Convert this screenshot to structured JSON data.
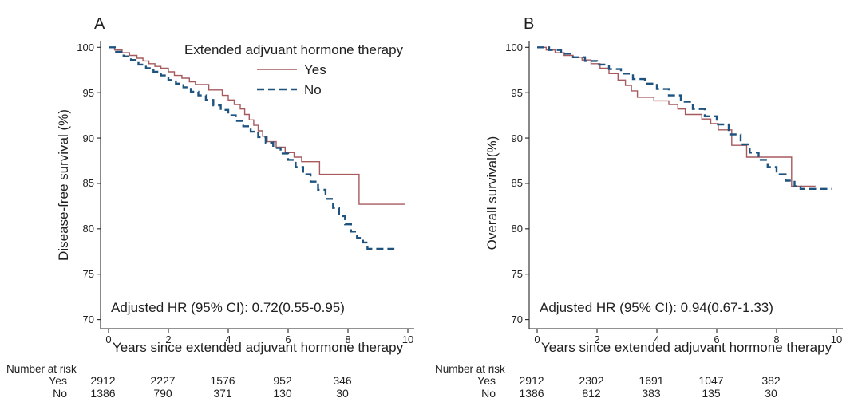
{
  "figure": {
    "background": "#ffffff",
    "text_color": "#1f1f1f",
    "axis_color": "#262626",
    "legend": {
      "title": "Extended adjvuant hormone therapy",
      "entries": [
        {
          "label": "Yes",
          "style": "solid",
          "color": "#a65a5e"
        },
        {
          "label": "No",
          "style": "dashed",
          "color": "#1f537f"
        }
      ]
    }
  },
  "chart_data": [
    {
      "type": "line",
      "subtype": "kaplan-meier-step",
      "panel_label": "A",
      "xlabel": "Years since extended adjuvant hormone therapy",
      "ylabel": "Disease-free survival (%)",
      "annotation": "Adjusted HR (95% CI): 0.72(0.55-0.95)",
      "xlim": [
        0,
        10
      ],
      "ylim": [
        70,
        100
      ],
      "x_ticks": [
        0,
        2,
        4,
        6,
        8,
        10
      ],
      "y_ticks": [
        100,
        95,
        90,
        85,
        80,
        75,
        70
      ],
      "grid": false,
      "legend_position": "top-right-inside",
      "series": [
        {
          "name": "Yes",
          "style": "solid",
          "color": "#a65a5e",
          "width": 1.4,
          "points": [
            [
              0,
              100
            ],
            [
              0.2,
              99.7
            ],
            [
              0.45,
              99.4
            ],
            [
              0.7,
              99.1
            ],
            [
              0.95,
              98.8
            ],
            [
              1.15,
              98.5
            ],
            [
              1.35,
              98.2
            ],
            [
              1.55,
              97.9
            ],
            [
              1.75,
              97.7
            ],
            [
              2.0,
              97.3
            ],
            [
              2.2,
              96.9
            ],
            [
              2.45,
              96.6
            ],
            [
              2.7,
              96.2
            ],
            [
              2.9,
              95.9
            ],
            [
              3.35,
              95.3
            ],
            [
              3.8,
              94.7
            ],
            [
              4.0,
              94.2
            ],
            [
              4.2,
              93.7
            ],
            [
              4.4,
              93.2
            ],
            [
              4.55,
              92.6
            ],
            [
              4.7,
              92.0
            ],
            [
              4.85,
              91.4
            ],
            [
              5.0,
              90.8
            ],
            [
              5.15,
              90.2
            ],
            [
              5.3,
              89.6
            ],
            [
              5.6,
              89.0
            ],
            [
              5.9,
              88.4
            ],
            [
              6.2,
              87.9
            ],
            [
              6.45,
              87.4
            ],
            [
              7.05,
              86.0
            ],
            [
              8.37,
              82.7
            ],
            [
              9.9,
              82.7
            ]
          ]
        },
        {
          "name": "No",
          "style": "dashed",
          "color": "#1f537f",
          "width": 2.4,
          "points": [
            [
              0,
              100
            ],
            [
              0.25,
              99.5
            ],
            [
              0.5,
              99.0
            ],
            [
              0.75,
              98.6
            ],
            [
              1.0,
              98.1
            ],
            [
              1.25,
              97.7
            ],
            [
              1.5,
              97.3
            ],
            [
              1.75,
              96.9
            ],
            [
              2.0,
              96.4
            ],
            [
              2.25,
              96.0
            ],
            [
              2.5,
              95.6
            ],
            [
              2.75,
              95.1
            ],
            [
              3.0,
              94.7
            ],
            [
              3.25,
              94.2
            ],
            [
              3.5,
              93.6
            ],
            [
              3.75,
              93.1
            ],
            [
              4.0,
              92.5
            ],
            [
              4.25,
              91.9
            ],
            [
              4.5,
              91.3
            ],
            [
              4.75,
              90.7
            ],
            [
              5.0,
              90.1
            ],
            [
              5.25,
              89.5
            ],
            [
              5.5,
              88.9
            ],
            [
              5.75,
              88.3
            ],
            [
              6.0,
              87.6
            ],
            [
              6.25,
              86.8
            ],
            [
              6.5,
              86.0
            ],
            [
              6.75,
              85.2
            ],
            [
              7.0,
              84.3
            ],
            [
              7.25,
              83.3
            ],
            [
              7.5,
              82.3
            ],
            [
              7.7,
              81.4
            ],
            [
              7.9,
              80.5
            ],
            [
              8.1,
              79.7
            ],
            [
              8.3,
              79.0
            ],
            [
              8.5,
              78.5
            ],
            [
              8.65,
              77.8
            ],
            [
              9.55,
              77.8
            ]
          ]
        }
      ],
      "number_at_risk": {
        "title": "Number at risk",
        "time_points": [
          0,
          2,
          4,
          6,
          8
        ],
        "rows": [
          {
            "label": "Yes",
            "values": [
              2912,
              2227,
              1576,
              952,
              346
            ]
          },
          {
            "label": "No",
            "values": [
              1386,
              790,
              371,
              130,
              30
            ]
          }
        ]
      }
    },
    {
      "type": "line",
      "subtype": "kaplan-meier-step",
      "panel_label": "B",
      "xlabel": "Years since extended adjuvant hormone therapy",
      "ylabel": "Overall survival(%)",
      "annotation": "Adjusted HR (95% CI): 0.94(0.67-1.33)",
      "xlim": [
        0,
        10
      ],
      "ylim": [
        70,
        100
      ],
      "x_ticks": [
        0,
        2,
        4,
        6,
        8,
        10
      ],
      "y_ticks": [
        100,
        95,
        90,
        85,
        80,
        75,
        70
      ],
      "grid": false,
      "legend_position": "none",
      "series": [
        {
          "name": "Yes",
          "style": "solid",
          "color": "#a65a5e",
          "width": 1.4,
          "points": [
            [
              0,
              100
            ],
            [
              0.3,
              99.7
            ],
            [
              0.6,
              99.4
            ],
            [
              0.9,
              99.1
            ],
            [
              1.2,
              98.9
            ],
            [
              1.5,
              98.6
            ],
            [
              1.8,
              98.2
            ],
            [
              2.1,
              97.7
            ],
            [
              2.4,
              97.1
            ],
            [
              2.7,
              96.4
            ],
            [
              2.95,
              95.8
            ],
            [
              3.15,
              95.2
            ],
            [
              3.35,
              94.5
            ],
            [
              3.9,
              94.1
            ],
            [
              4.4,
              93.7
            ],
            [
              4.7,
              93.2
            ],
            [
              4.95,
              92.6
            ],
            [
              5.5,
              92.1
            ],
            [
              5.8,
              91.6
            ],
            [
              6.05,
              90.9
            ],
            [
              6.5,
              89.2
            ],
            [
              7.0,
              87.9
            ],
            [
              8.5,
              84.7
            ],
            [
              9.3,
              84.7
            ]
          ]
        },
        {
          "name": "No",
          "style": "dashed",
          "color": "#1f537f",
          "width": 2.4,
          "points": [
            [
              0,
              100
            ],
            [
              0.4,
              99.7
            ],
            [
              0.8,
              99.3
            ],
            [
              1.2,
              98.9
            ],
            [
              1.6,
              98.5
            ],
            [
              2.0,
              98.1
            ],
            [
              2.4,
              97.6
            ],
            [
              2.8,
              97.1
            ],
            [
              3.2,
              96.5
            ],
            [
              3.6,
              96.0
            ],
            [
              4.0,
              95.4
            ],
            [
              4.4,
              94.7
            ],
            [
              4.8,
              94.0
            ],
            [
              5.2,
              93.2
            ],
            [
              5.6,
              92.4
            ],
            [
              6.0,
              91.5
            ],
            [
              6.4,
              90.4
            ],
            [
              6.8,
              89.3
            ],
            [
              7.1,
              88.4
            ],
            [
              7.4,
              87.6
            ],
            [
              7.7,
              86.8
            ],
            [
              8.0,
              86.0
            ],
            [
              8.3,
              85.3
            ],
            [
              8.6,
              84.7
            ],
            [
              8.8,
              84.4
            ],
            [
              9.85,
              84.4
            ]
          ]
        }
      ],
      "number_at_risk": {
        "title": "Number at risk",
        "time_points": [
          0,
          2,
          4,
          6,
          8
        ],
        "rows": [
          {
            "label": "Yes",
            "values": [
              2912,
              2302,
              1691,
              1047,
              382
            ]
          },
          {
            "label": "No",
            "values": [
              1386,
              812,
              383,
              135,
              30
            ]
          }
        ]
      }
    }
  ]
}
